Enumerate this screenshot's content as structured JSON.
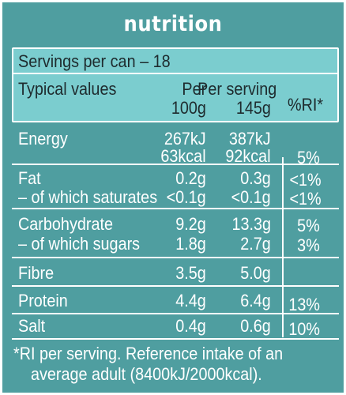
{
  "title": "nutrition",
  "servings": "Servings per can – 18",
  "headers": {
    "typical": "Typical values",
    "per100_line1": "Per",
    "per100_line2": "100g",
    "perserving_line1": "Per serving",
    "perserving_line2": "145g",
    "ri": "%RI*"
  },
  "rows": [
    {
      "label": "Energy",
      "per100": "267kJ",
      "perserving": "387kJ",
      "ri": ""
    },
    {
      "label": "",
      "per100": "63kcal",
      "perserving": "92kcal",
      "ri": "5%"
    },
    {
      "label": "Fat",
      "per100": "0.2g",
      "perserving": "0.3g",
      "ri": "<1%"
    },
    {
      "label": "– of which saturates",
      "per100": "<0.1g",
      "perserving": "<0.1g",
      "ri": "<1%"
    },
    {
      "label": "Carbohydrate",
      "per100": "9.2g",
      "perserving": "13.3g",
      "ri": "5%"
    },
    {
      "label": "– of which sugars",
      "per100": "1.8g",
      "perserving": "2.7g",
      "ri": "3%"
    },
    {
      "label": "Fibre",
      "per100": "3.5g",
      "perserving": "5.0g",
      "ri": ""
    },
    {
      "label": "Protein",
      "per100": "4.4g",
      "perserving": "6.4g",
      "ri": "13%"
    },
    {
      "label": "Salt",
      "per100": "0.4g",
      "perserving": "0.6g",
      "ri": "10%"
    }
  ],
  "footnote": {
    "line1": "*RI per serving. Reference intake of an",
    "line2": "average adult (8400kJ/2000kcal)."
  },
  "colors": {
    "background": "#4f9ea0",
    "header": "#7bcdcf",
    "text": "#ffffff",
    "header_text": "#1e2b2e"
  }
}
